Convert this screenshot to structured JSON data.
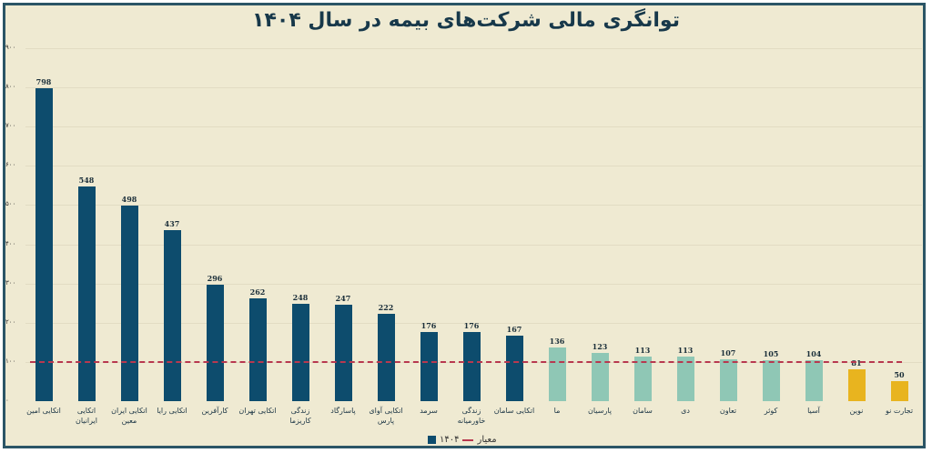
{
  "chart_data": {
    "type": "bar",
    "title": "توانگری مالی شرکت‌های بیمه در سال ۱۴۰۴",
    "xlabel": "",
    "ylabel": "",
    "ylim": [
      0,
      900
    ],
    "yticks": [
      "۰",
      "۱۰۰",
      "۲۰۰",
      "۳۰۰",
      "۴۰۰",
      "۵۰۰",
      "۶۰۰",
      "۷۰۰",
      "۸۰۰",
      "۹۰۰"
    ],
    "grid": true,
    "legend_position": "bottom",
    "categories": [
      "اتکایی امین",
      "اتکایی ایرانیان",
      "اتکایی ایران معین",
      "اتکایی رایا",
      "کارآفرین",
      "اتکایی تهران",
      "زندگی کاریزما",
      "پاسارگاد",
      "اتکایی آوای پارس",
      "سرمد",
      "زندگی خاورمیانه",
      "اتکایی سامان",
      "ما",
      "پارسیان",
      "سامان",
      "دی",
      "تعاون",
      "کوثر",
      "آسیا",
      "نوین",
      "تجارت نو"
    ],
    "series": [
      {
        "name": "۱۴۰۴",
        "values": [
          798,
          548,
          498,
          437,
          296,
          262,
          248,
          247,
          222,
          176,
          176,
          167,
          136,
          123,
          113,
          113,
          107,
          105,
          104,
          81,
          50
        ]
      },
      {
        "name": "معیار",
        "values": [
          100,
          100,
          100,
          100,
          100,
          100,
          100,
          100,
          100,
          100,
          100,
          100,
          100,
          100,
          100,
          100,
          100,
          100,
          100,
          100,
          100
        ],
        "style": "dashed-line"
      }
    ],
    "bar_colors": [
      "#0d4c6d",
      "#0d4c6d",
      "#0d4c6d",
      "#0d4c6d",
      "#0d4c6d",
      "#0d4c6d",
      "#0d4c6d",
      "#0d4c6d",
      "#0d4c6d",
      "#0d4c6d",
      "#0d4c6d",
      "#0d4c6d",
      "#8fc7b5",
      "#8fc7b5",
      "#8fc7b5",
      "#8fc7b5",
      "#8fc7b5",
      "#8fc7b5",
      "#8fc7b5",
      "#e8b41f",
      "#e8b41f"
    ],
    "value_labels": [
      "798",
      "548",
      "498",
      "437",
      "296",
      "262",
      "248",
      "247",
      "222",
      "176",
      "176",
      "167",
      "136",
      "123",
      "113",
      "113",
      "107",
      "105",
      "104",
      "81",
      "50"
    ]
  },
  "legend": {
    "series_label": "۱۴۰۴",
    "benchmark_label": "معیار"
  },
  "colors": {
    "background": "#efead2",
    "border": "#2b5566",
    "strong": "#0d4c6d",
    "adequate": "#8fc7b5",
    "weak": "#e8b41f",
    "benchmark": "#b8384f"
  }
}
